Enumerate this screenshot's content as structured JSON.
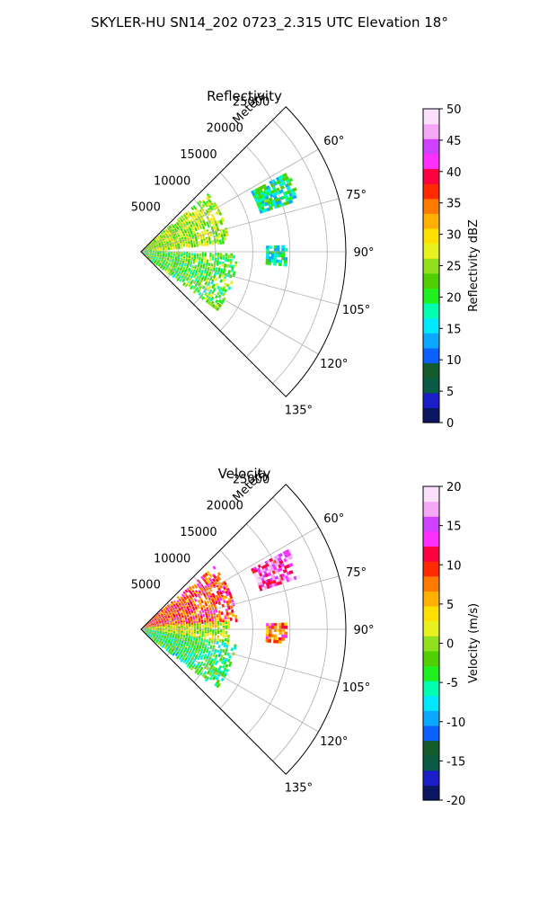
{
  "figure": {
    "title": "SKYLER-HU  SN14_202  0723_2.315 UTC Elevation 18°"
  },
  "colors": {
    "reflectivity_colormap": [
      "#0b1560",
      "#1a1dc8",
      "#0b5a44",
      "#145c2c",
      "#0b60ff",
      "#0aa8ff",
      "#00e8ff",
      "#00ffb0",
      "#20f020",
      "#50d000",
      "#90e020",
      "#e8f020",
      "#ffe000",
      "#ffb000",
      "#ff7a00",
      "#ff2a00",
      "#ff0040",
      "#ff30ff",
      "#d040ff",
      "#f5a8f5",
      "#fbe0fb"
    ],
    "velocity_colormap": [
      "#0b1560",
      "#1a1dc8",
      "#0b5a44",
      "#145c2c",
      "#0b60ff",
      "#0aa8ff",
      "#00e8ff",
      "#00ffb0",
      "#20f020",
      "#50d000",
      "#90e020",
      "#e8f020",
      "#ffe000",
      "#ffb000",
      "#ff7a00",
      "#ff2a00",
      "#ff0040",
      "#ff30ff",
      "#d040ff",
      "#f5a8f5",
      "#fbe0fb"
    ]
  },
  "chart_data": [
    {
      "type": "heatmap",
      "subtype": "polar-sector (radar PPI)",
      "title": "Reflectivity",
      "radial_label": "Meters",
      "radial_ticks": [
        5000,
        10000,
        15000,
        20000,
        25000
      ],
      "radial_range": [
        0,
        27500
      ],
      "angle_ticks": [
        "60°",
        "75°",
        "90°",
        "105°",
        "120°",
        "135°"
      ],
      "angle_range_deg": [
        45,
        135
      ],
      "grid": true,
      "colorbar": {
        "label": "Reflectivity dBZ",
        "ticks": [
          0,
          5,
          10,
          15,
          20,
          25,
          30,
          35,
          40,
          45,
          50
        ],
        "range": [
          0,
          50
        ]
      },
      "echo_regions": [
        {
          "az_range": [
            50,
            84
          ],
          "r_range": [
            0,
            12000
          ],
          "value": 25
        },
        {
          "az_range": [
            92,
            128
          ],
          "r_range": [
            0,
            13000
          ],
          "value": 22
        },
        {
          "az_range": [
            62,
            72
          ],
          "r_range": [
            17000,
            22500
          ],
          "value": 18
        },
        {
          "az_range": [
            88,
            96
          ],
          "r_range": [
            17000,
            19500
          ],
          "value": 18
        }
      ]
    },
    {
      "type": "heatmap",
      "subtype": "polar-sector (radar PPI)",
      "title": "Velocity",
      "radial_label": "Meters",
      "radial_ticks": [
        5000,
        10000,
        15000,
        20000,
        25000
      ],
      "radial_range": [
        0,
        27500
      ],
      "angle_ticks": [
        "60°",
        "75°",
        "90°",
        "105°",
        "120°",
        "135°"
      ],
      "angle_range_deg": [
        45,
        135
      ],
      "grid": true,
      "colorbar": {
        "label": "Velocity (m/s)",
        "ticks": [
          -20,
          -15,
          -10,
          -5,
          0,
          5,
          10,
          15,
          20
        ],
        "range": [
          -20,
          20
        ]
      },
      "echo_regions": [
        {
          "az_range": [
            50,
            85
          ],
          "r_range": [
            0,
            13000
          ],
          "value": 9
        },
        {
          "az_range": [
            85,
            100
          ],
          "r_range": [
            0,
            12000
          ],
          "value": 1
        },
        {
          "az_range": [
            100,
            128
          ],
          "r_range": [
            0,
            13000
          ],
          "value": -4
        },
        {
          "az_range": [
            62,
            72
          ],
          "r_range": [
            17000,
            22500
          ],
          "value": 15
        },
        {
          "az_range": [
            88,
            96
          ],
          "r_range": [
            17000,
            19500
          ],
          "value": 9
        }
      ]
    }
  ]
}
